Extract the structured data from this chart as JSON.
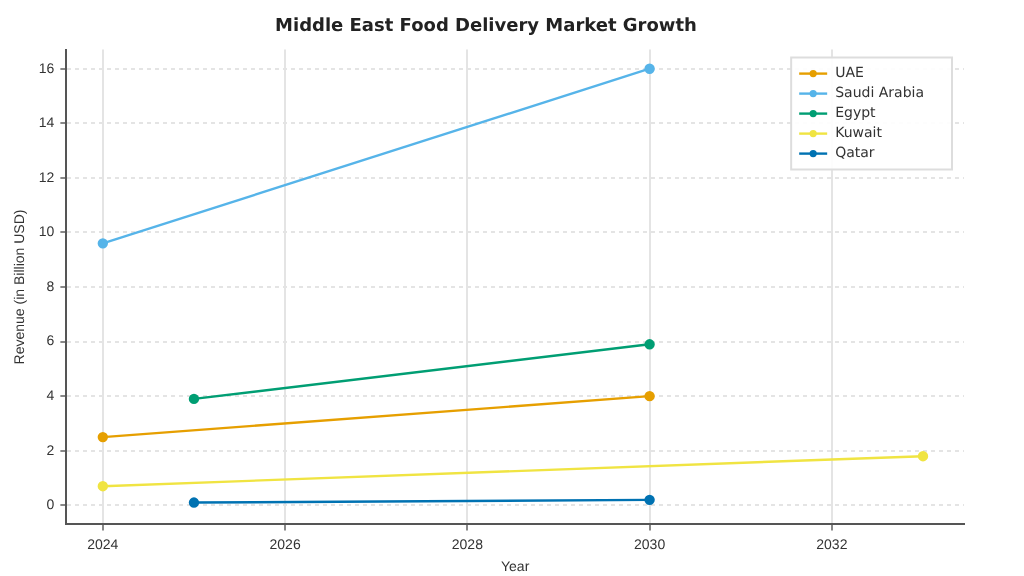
{
  "chart_data": {
    "type": "line",
    "title": "Middle East Food Delivery Market Growth",
    "xlabel": "Year",
    "ylabel": "Revenue (in Billion USD)",
    "series": [
      {
        "name": "UAE",
        "color": "#e69f00",
        "x": [
          2024,
          2030
        ],
        "values": [
          2.5,
          4.0
        ]
      },
      {
        "name": "Saudi Arabia",
        "color": "#56b4e9",
        "x": [
          2024,
          2030
        ],
        "values": [
          9.6,
          16
        ]
      },
      {
        "name": "Egypt",
        "color": "#009e73",
        "x": [
          2025,
          2030
        ],
        "values": [
          3.9,
          5.9
        ]
      },
      {
        "name": "Kuwait",
        "color": "#f0e442",
        "x": [
          2024,
          2033
        ],
        "values": [
          0.7,
          1.8
        ]
      },
      {
        "name": "Qatar",
        "color": "#0072b2",
        "x": [
          2025,
          2030
        ],
        "values": [
          0.1,
          0.2
        ]
      }
    ],
    "xlim": [
      2023.6,
      2033.45
    ],
    "xticks": [
      2024,
      2026,
      2028,
      2030,
      2032
    ],
    "ylim": [
      -0.7,
      16.7
    ],
    "yticks": [
      0,
      2,
      4,
      6,
      8,
      10,
      12,
      14,
      16
    ],
    "grid": true,
    "legend": "top right",
    "marker": "circle",
    "line_style": "solid"
  }
}
